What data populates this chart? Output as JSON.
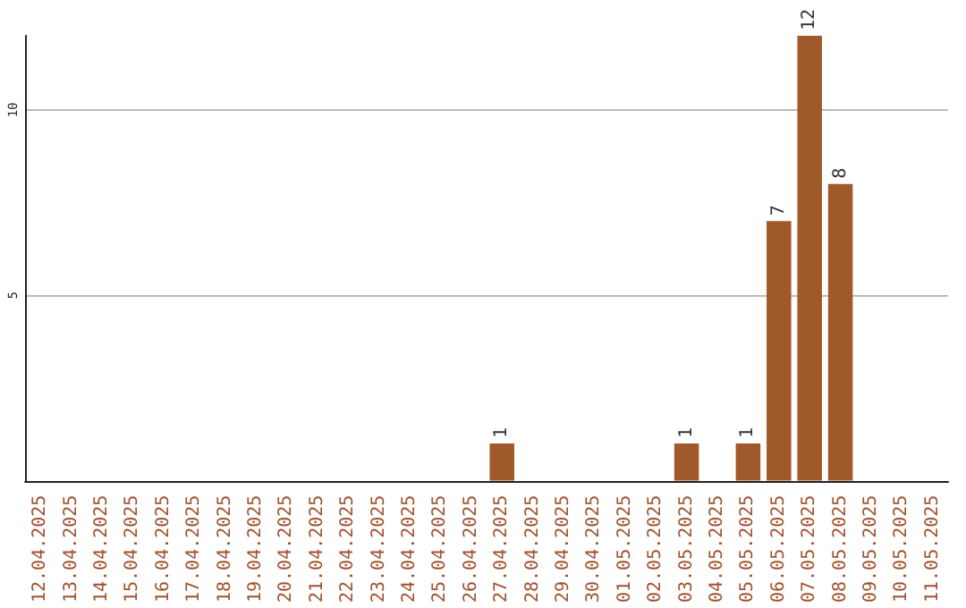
{
  "chart_data": {
    "type": "bar",
    "categories": [
      "12.04.2025",
      "13.04.2025",
      "14.04.2025",
      "15.04.2025",
      "16.04.2025",
      "17.04.2025",
      "18.04.2025",
      "19.04.2025",
      "20.04.2025",
      "21.04.2025",
      "22.04.2025",
      "23.04.2025",
      "24.04.2025",
      "25.04.2025",
      "26.04.2025",
      "27.04.2025",
      "28.04.2025",
      "29.04.2025",
      "30.04.2025",
      "01.05.2025",
      "02.05.2025",
      "03.05.2025",
      "04.05.2025",
      "05.05.2025",
      "06.05.2025",
      "07.05.2025",
      "08.05.2025",
      "09.05.2025",
      "10.05.2025",
      "11.05.2025"
    ],
    "values": [
      0,
      0,
      0,
      0,
      0,
      0,
      0,
      0,
      0,
      0,
      0,
      0,
      0,
      0,
      0,
      1,
      0,
      0,
      0,
      0,
      0,
      1,
      0,
      1,
      7,
      12,
      8,
      0,
      0,
      0
    ],
    "value_labels": [
      null,
      null,
      null,
      null,
      null,
      null,
      null,
      null,
      null,
      null,
      null,
      null,
      null,
      null,
      null,
      "1",
      null,
      null,
      null,
      null,
      null,
      "1",
      null,
      "1",
      "7",
      "12",
      "8",
      null,
      null,
      null
    ],
    "color": "#a0592a",
    "ylim": [
      0,
      12
    ],
    "yticks": [
      5,
      10
    ],
    "grid": "y"
  }
}
